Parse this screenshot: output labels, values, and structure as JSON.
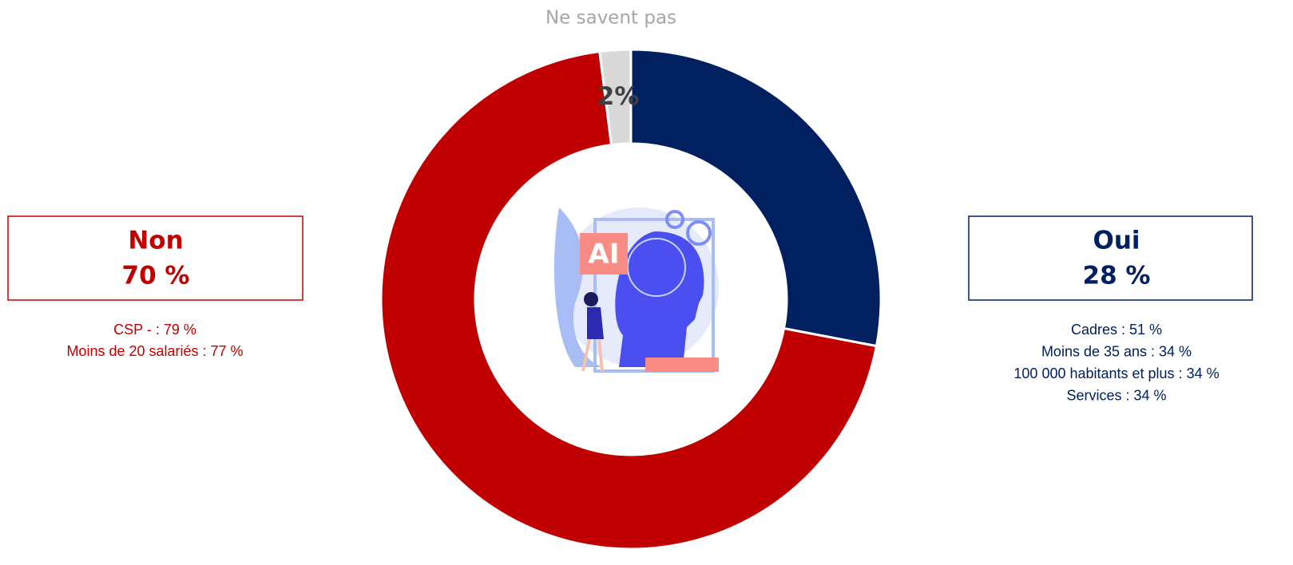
{
  "chart_data": {
    "type": "donut",
    "categories": [
      "Oui",
      "Non",
      "Ne savent pas"
    ],
    "values": [
      28,
      70,
      2
    ],
    "value_labels": [
      "28 %",
      "70 %",
      "2%"
    ],
    "colors": [
      "#002060",
      "#c00000",
      "#d9d9d9"
    ],
    "details_oui": [
      "Cadres : 51 %",
      "Moins de 35 ans : 34 %",
      "100 000 habitants et plus : 34 %",
      "Services : 34 %"
    ],
    "details_non": [
      "CSP - : 79 %",
      "Moins de 20 salariés : 77 %"
    ]
  }
}
